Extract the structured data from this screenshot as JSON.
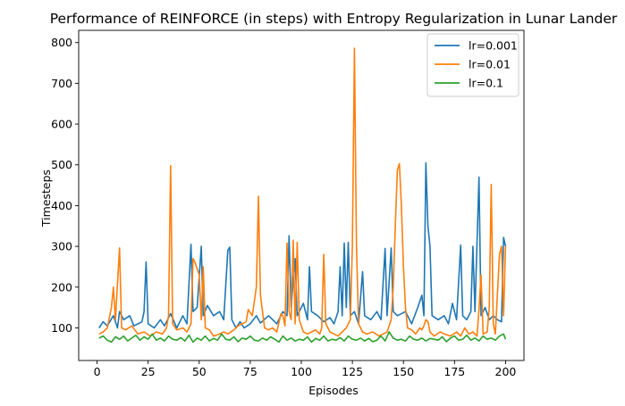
{
  "chart_data": {
    "type": "line",
    "title": "Performance of REINFORCE (in steps) with Entropy Regularization in Lunar Lander",
    "xlabel": "Episodes",
    "ylabel": "Timesteps",
    "xlim": [
      -9,
      209
    ],
    "ylim": [
      20,
      830
    ],
    "xticks": [
      0,
      25,
      50,
      75,
      100,
      125,
      150,
      175,
      200
    ],
    "yticks": [
      100,
      200,
      300,
      400,
      500,
      600,
      700,
      800
    ],
    "grid": false,
    "legend_position": "top-right",
    "series": [
      {
        "name": "lr=0.001",
        "color": "#1f77b4",
        "keypoints": [
          [
            1,
            100
          ],
          [
            3,
            115
          ],
          [
            5,
            105
          ],
          [
            8,
            130
          ],
          [
            10,
            100
          ],
          [
            11,
            140
          ],
          [
            13,
            120
          ],
          [
            16,
            130
          ],
          [
            18,
            105
          ],
          [
            22,
            115
          ],
          [
            23,
            140
          ],
          [
            24,
            262
          ],
          [
            25,
            110
          ],
          [
            28,
            100
          ],
          [
            31,
            120
          ],
          [
            33,
            105
          ],
          [
            36,
            135
          ],
          [
            39,
            100
          ],
          [
            42,
            130
          ],
          [
            44,
            110
          ],
          [
            46,
            305
          ],
          [
            47,
            140
          ],
          [
            49,
            150
          ],
          [
            51,
            300
          ],
          [
            52,
            130
          ],
          [
            54,
            155
          ],
          [
            57,
            130
          ],
          [
            60,
            140
          ],
          [
            62,
            120
          ],
          [
            64,
            290
          ],
          [
            65,
            298
          ],
          [
            66,
            120
          ],
          [
            68,
            100
          ],
          [
            70,
            115
          ],
          [
            72,
            100
          ],
          [
            75,
            110
          ],
          [
            78,
            130
          ],
          [
            80,
            112
          ],
          [
            84,
            130
          ],
          [
            88,
            110
          ],
          [
            91,
            140
          ],
          [
            93,
            130
          ],
          [
            94,
            326
          ],
          [
            95,
            150
          ],
          [
            97,
            270
          ],
          [
            98,
            130
          ],
          [
            101,
            160
          ],
          [
            103,
            120
          ],
          [
            104,
            250
          ],
          [
            105,
            140
          ],
          [
            108,
            130
          ],
          [
            111,
            115
          ],
          [
            114,
            125
          ],
          [
            116,
            110
          ],
          [
            118,
            140
          ],
          [
            119,
            250
          ],
          [
            120,
            130
          ],
          [
            121,
            308
          ],
          [
            122,
            150
          ],
          [
            123,
            310
          ],
          [
            124,
            130
          ],
          [
            126,
            140
          ],
          [
            128,
            110
          ],
          [
            130,
            238
          ],
          [
            131,
            130
          ],
          [
            134,
            120
          ],
          [
            137,
            140
          ],
          [
            139,
            120
          ],
          [
            141,
            295
          ],
          [
            142,
            130
          ],
          [
            144,
            296
          ],
          [
            145,
            140
          ],
          [
            147,
            130
          ],
          [
            151,
            140
          ],
          [
            154,
            110
          ],
          [
            157,
            150
          ],
          [
            159,
            180
          ],
          [
            160,
            130
          ],
          [
            161,
            505
          ],
          [
            162,
            350
          ],
          [
            163,
            300
          ],
          [
            164,
            130
          ],
          [
            167,
            120
          ],
          [
            170,
            130
          ],
          [
            172,
            110
          ],
          [
            174,
            160
          ],
          [
            176,
            120
          ],
          [
            178,
            303
          ],
          [
            179,
            130
          ],
          [
            181,
            120
          ],
          [
            183,
            140
          ],
          [
            184,
            300
          ],
          [
            185,
            140
          ],
          [
            187,
            470
          ],
          [
            188,
            130
          ],
          [
            190,
            150
          ],
          [
            192,
            120
          ],
          [
            194,
            130
          ],
          [
            196,
            120
          ],
          [
            198,
            115
          ],
          [
            199,
            322
          ],
          [
            200,
            300
          ]
        ]
      },
      {
        "name": "lr=0.01",
        "color": "#ff7f0e",
        "keypoints": [
          [
            1,
            85
          ],
          [
            3,
            90
          ],
          [
            5,
            100
          ],
          [
            7,
            150
          ],
          [
            8,
            200
          ],
          [
            9,
            120
          ],
          [
            11,
            296
          ],
          [
            12,
            100
          ],
          [
            14,
            95
          ],
          [
            17,
            105
          ],
          [
            20,
            85
          ],
          [
            23,
            90
          ],
          [
            26,
            80
          ],
          [
            29,
            90
          ],
          [
            32,
            85
          ],
          [
            34,
            100
          ],
          [
            35,
            130
          ],
          [
            36,
            498
          ],
          [
            37,
            110
          ],
          [
            39,
            95
          ],
          [
            42,
            100
          ],
          [
            44,
            90
          ],
          [
            46,
            110
          ],
          [
            47,
            270
          ],
          [
            48,
            260
          ],
          [
            50,
            230
          ],
          [
            51,
            120
          ],
          [
            52,
            250
          ],
          [
            53,
            100
          ],
          [
            55,
            95
          ],
          [
            57,
            80
          ],
          [
            60,
            85
          ],
          [
            62,
            90
          ],
          [
            64,
            85
          ],
          [
            67,
            95
          ],
          [
            69,
            105
          ],
          [
            71,
            110
          ],
          [
            73,
            115
          ],
          [
            74,
            145
          ],
          [
            76,
            130
          ],
          [
            78,
            200
          ],
          [
            79,
            423
          ],
          [
            80,
            180
          ],
          [
            82,
            100
          ],
          [
            84,
            95
          ],
          [
            86,
            100
          ],
          [
            88,
            90
          ],
          [
            90,
            135
          ],
          [
            91,
            130
          ],
          [
            92,
            105
          ],
          [
            93,
            308
          ],
          [
            94,
            140
          ],
          [
            95,
            120
          ],
          [
            96,
            315
          ],
          [
            97,
            110
          ],
          [
            98,
            310
          ],
          [
            99,
            120
          ],
          [
            101,
            90
          ],
          [
            103,
            85
          ],
          [
            105,
            90
          ],
          [
            107,
            95
          ],
          [
            109,
            85
          ],
          [
            110,
            100
          ],
          [
            111,
            280
          ],
          [
            112,
            110
          ],
          [
            114,
            90
          ],
          [
            116,
            85
          ],
          [
            118,
            80
          ],
          [
            120,
            90
          ],
          [
            122,
            100
          ],
          [
            124,
            120
          ],
          [
            125,
            300
          ],
          [
            126,
            786
          ],
          [
            127,
            300
          ],
          [
            128,
            110
          ],
          [
            130,
            90
          ],
          [
            132,
            85
          ],
          [
            135,
            90
          ],
          [
            138,
            80
          ],
          [
            140,
            85
          ],
          [
            142,
            90
          ],
          [
            144,
            120
          ],
          [
            145,
            200
          ],
          [
            146,
            350
          ],
          [
            147,
            487
          ],
          [
            148,
            503
          ],
          [
            149,
            400
          ],
          [
            150,
            250
          ],
          [
            151,
            150
          ],
          [
            152,
            100
          ],
          [
            154,
            95
          ],
          [
            156,
            85
          ],
          [
            158,
            100
          ],
          [
            159,
            95
          ],
          [
            160,
            105
          ],
          [
            161,
            120
          ],
          [
            162,
            115
          ],
          [
            163,
            90
          ],
          [
            165,
            80
          ],
          [
            168,
            90
          ],
          [
            170,
            85
          ],
          [
            173,
            80
          ],
          [
            176,
            90
          ],
          [
            178,
            80
          ],
          [
            180,
            100
          ],
          [
            182,
            85
          ],
          [
            184,
            90
          ],
          [
            186,
            80
          ],
          [
            187,
            145
          ],
          [
            188,
            230
          ],
          [
            189,
            85
          ],
          [
            191,
            90
          ],
          [
            192,
            150
          ],
          [
            193,
            452
          ],
          [
            194,
            110
          ],
          [
            195,
            85
          ],
          [
            197,
            280
          ],
          [
            198,
            300
          ],
          [
            199,
            130
          ],
          [
            200,
            300
          ]
        ]
      },
      {
        "name": "lr=0.1",
        "color": "#2ca02c",
        "keypoints": [
          [
            1,
            75
          ],
          [
            3,
            80
          ],
          [
            5,
            70
          ],
          [
            7,
            65
          ],
          [
            9,
            78
          ],
          [
            11,
            72
          ],
          [
            13,
            80
          ],
          [
            15,
            68
          ],
          [
            17,
            75
          ],
          [
            19,
            82
          ],
          [
            21,
            70
          ],
          [
            23,
            78
          ],
          [
            25,
            72
          ],
          [
            27,
            85
          ],
          [
            29,
            70
          ],
          [
            31,
            75
          ],
          [
            33,
            68
          ],
          [
            35,
            80
          ],
          [
            37,
            72
          ],
          [
            39,
            70
          ],
          [
            41,
            76
          ],
          [
            43,
            68
          ],
          [
            45,
            82
          ],
          [
            47,
            65
          ],
          [
            49,
            75
          ],
          [
            51,
            70
          ],
          [
            53,
            80
          ],
          [
            55,
            68
          ],
          [
            57,
            74
          ],
          [
            59,
            70
          ],
          [
            61,
            85
          ],
          [
            63,
            72
          ],
          [
            65,
            70
          ],
          [
            67,
            78
          ],
          [
            69,
            66
          ],
          [
            71,
            75
          ],
          [
            73,
            72
          ],
          [
            75,
            80
          ],
          [
            77,
            70
          ],
          [
            79,
            68
          ],
          [
            81,
            75
          ],
          [
            83,
            70
          ],
          [
            85,
            78
          ],
          [
            87,
            72
          ],
          [
            89,
            65
          ],
          [
            91,
            80
          ],
          [
            93,
            70
          ],
          [
            95,
            75
          ],
          [
            97,
            68
          ],
          [
            99,
            72
          ],
          [
            101,
            70
          ],
          [
            103,
            78
          ],
          [
            105,
            65
          ],
          [
            107,
            74
          ],
          [
            109,
            70
          ],
          [
            111,
            80
          ],
          [
            113,
            68
          ],
          [
            115,
            72
          ],
          [
            117,
            70
          ],
          [
            119,
            76
          ],
          [
            121,
            68
          ],
          [
            123,
            80
          ],
          [
            125,
            72
          ],
          [
            127,
            70
          ],
          [
            129,
            75
          ],
          [
            131,
            68
          ],
          [
            133,
            74
          ],
          [
            135,
            66
          ],
          [
            137,
            70
          ],
          [
            139,
            80
          ],
          [
            141,
            68
          ],
          [
            143,
            90
          ],
          [
            145,
            75
          ],
          [
            147,
            70
          ],
          [
            149,
            72
          ],
          [
            151,
            68
          ],
          [
            153,
            80
          ],
          [
            155,
            72
          ],
          [
            157,
            70
          ],
          [
            159,
            75
          ],
          [
            161,
            68
          ],
          [
            163,
            74
          ],
          [
            165,
            72
          ],
          [
            167,
            70
          ],
          [
            169,
            78
          ],
          [
            171,
            66
          ],
          [
            173,
            75
          ],
          [
            175,
            80
          ],
          [
            177,
            70
          ],
          [
            179,
            72
          ],
          [
            181,
            82
          ],
          [
            183,
            70
          ],
          [
            185,
            75
          ],
          [
            187,
            68
          ],
          [
            189,
            80
          ],
          [
            191,
            72
          ],
          [
            193,
            75
          ],
          [
            195,
            70
          ],
          [
            197,
            80
          ],
          [
            199,
            85
          ],
          [
            200,
            72
          ]
        ]
      }
    ]
  }
}
